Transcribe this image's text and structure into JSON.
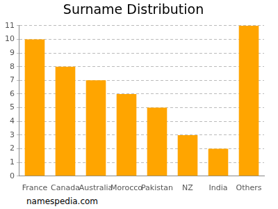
{
  "chart_data": {
    "type": "bar",
    "title": "Surname Distribution",
    "categories": [
      "France",
      "Canada",
      "Australia",
      "Morocco",
      "Pakistan",
      "NZ",
      "India",
      "Others"
    ],
    "values": [
      10,
      8,
      7,
      6,
      5,
      3,
      2,
      11
    ],
    "color": "#ffa500",
    "ylim": [
      0,
      11
    ],
    "yticks": [
      0,
      1,
      2,
      3,
      4,
      5,
      6,
      7,
      8,
      9,
      10,
      11
    ],
    "grid": true,
    "annotations": [
      "namespedia.com"
    ]
  }
}
